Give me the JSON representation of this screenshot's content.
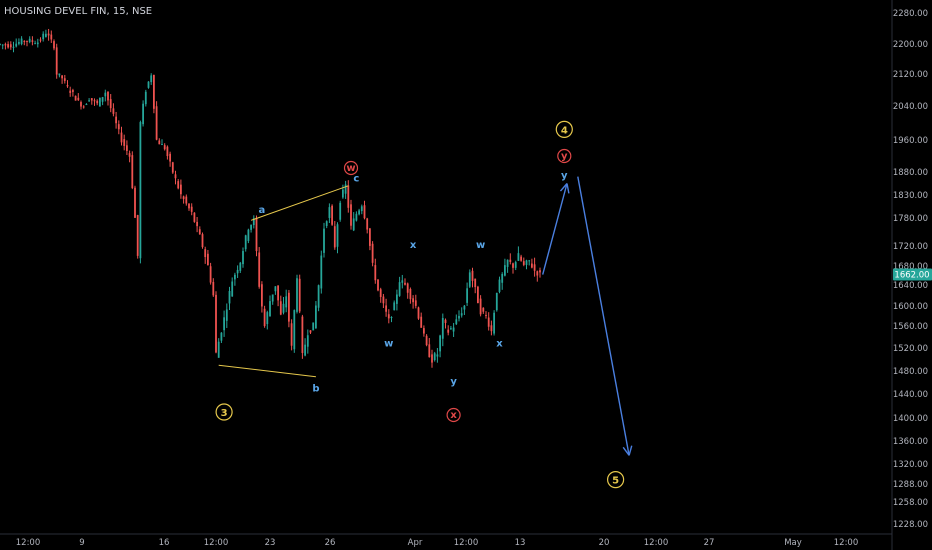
{
  "chart_data": {
    "type": "candlestick",
    "title": "HOUSING DEVEL FIN, 15, NSE",
    "last_price_label": "1662.00",
    "colors": {
      "background": "#000000",
      "up": "#26a69a",
      "down": "#ef5350",
      "trendline": "#e6c84c",
      "arrow": "#4a7fe0",
      "wave_major": "#e6c84c",
      "wave_red": "#e04848",
      "wave_blue": "#5aa6e8",
      "price_badge": "#26a69a"
    },
    "y_axis": {
      "ticks": [
        "2280.00",
        "2200.00",
        "2120.00",
        "2040.00",
        "1960.00",
        "1880.00",
        "1830.00",
        "1780.00",
        "1720.00",
        "1680.00",
        "1640.00",
        "1600.00",
        "1560.00",
        "1520.00",
        "1480.00",
        "1440.00",
        "1400.00",
        "1360.00",
        "1320.00",
        "1288.00",
        "1258.00",
        "1228.00"
      ]
    },
    "x_axis": {
      "ticks": [
        "12:00",
        "9",
        "16",
        "12:00",
        "23",
        "26",
        "Apr",
        "12:00",
        "13",
        "20",
        "12:00",
        "27",
        "May",
        "12:00"
      ]
    },
    "price_path": [
      {
        "x": 0,
        "y": 2200
      },
      {
        "x": 5,
        "y": 2196
      },
      {
        "x": 10,
        "y": 2210
      },
      {
        "x": 15,
        "y": 2205
      },
      {
        "x": 18,
        "y": 2230
      },
      {
        "x": 21,
        "y": 2195
      },
      {
        "x": 22,
        "y": 2120
      },
      {
        "x": 24,
        "y": 2110
      },
      {
        "x": 26,
        "y": 2085
      },
      {
        "x": 28,
        "y": 2070
      },
      {
        "x": 30,
        "y": 2050
      },
      {
        "x": 32,
        "y": 2040
      },
      {
        "x": 34,
        "y": 2060
      },
      {
        "x": 37,
        "y": 2045
      },
      {
        "x": 40,
        "y": 2075
      },
      {
        "x": 43,
        "y": 2015
      },
      {
        "x": 46,
        "y": 1960
      },
      {
        "x": 49,
        "y": 1920
      },
      {
        "x": 51,
        "y": 1780
      },
      {
        "x": 52,
        "y": 1700
      },
      {
        "x": 53,
        "y": 2000
      },
      {
        "x": 55,
        "y": 2080
      },
      {
        "x": 57,
        "y": 2120
      },
      {
        "x": 59,
        "y": 1960
      },
      {
        "x": 62,
        "y": 1940
      },
      {
        "x": 65,
        "y": 1880
      },
      {
        "x": 68,
        "y": 1830
      },
      {
        "x": 72,
        "y": 1790
      },
      {
        "x": 75,
        "y": 1740
      },
      {
        "x": 78,
        "y": 1680
      },
      {
        "x": 80,
        "y": 1620
      },
      {
        "x": 81,
        "y": 1510
      },
      {
        "x": 84,
        "y": 1575
      },
      {
        "x": 87,
        "y": 1650
      },
      {
        "x": 90,
        "y": 1690
      },
      {
        "x": 93,
        "y": 1760
      },
      {
        "x": 95,
        "y": 1775
      },
      {
        "x": 97,
        "y": 1640
      },
      {
        "x": 99,
        "y": 1560
      },
      {
        "x": 101,
        "y": 1610
      },
      {
        "x": 103,
        "y": 1640
      },
      {
        "x": 105,
        "y": 1580
      },
      {
        "x": 107,
        "y": 1620
      },
      {
        "x": 109,
        "y": 1520
      },
      {
        "x": 111,
        "y": 1660
      },
      {
        "x": 113,
        "y": 1505
      },
      {
        "x": 115,
        "y": 1550
      },
      {
        "x": 117,
        "y": 1560
      },
      {
        "x": 119,
        "y": 1640
      },
      {
        "x": 121,
        "y": 1760
      },
      {
        "x": 123,
        "y": 1800
      },
      {
        "x": 125,
        "y": 1720
      },
      {
        "x": 127,
        "y": 1820
      },
      {
        "x": 129,
        "y": 1850
      },
      {
        "x": 131,
        "y": 1760
      },
      {
        "x": 133,
        "y": 1790
      },
      {
        "x": 135,
        "y": 1810
      },
      {
        "x": 137,
        "y": 1760
      },
      {
        "x": 139,
        "y": 1680
      },
      {
        "x": 141,
        "y": 1630
      },
      {
        "x": 143,
        "y": 1600
      },
      {
        "x": 145,
        "y": 1570
      },
      {
        "x": 147,
        "y": 1600
      },
      {
        "x": 149,
        "y": 1650
      },
      {
        "x": 151,
        "y": 1640
      },
      {
        "x": 153,
        "y": 1620
      },
      {
        "x": 155,
        "y": 1600
      },
      {
        "x": 157,
        "y": 1560
      },
      {
        "x": 159,
        "y": 1520
      },
      {
        "x": 161,
        "y": 1500
      },
      {
        "x": 163,
        "y": 1510
      },
      {
        "x": 165,
        "y": 1570
      },
      {
        "x": 167,
        "y": 1550
      },
      {
        "x": 169,
        "y": 1560
      },
      {
        "x": 171,
        "y": 1580
      },
      {
        "x": 173,
        "y": 1600
      },
      {
        "x": 175,
        "y": 1670
      },
      {
        "x": 177,
        "y": 1630
      },
      {
        "x": 179,
        "y": 1590
      },
      {
        "x": 181,
        "y": 1580
      },
      {
        "x": 183,
        "y": 1550
      },
      {
        "x": 185,
        "y": 1630
      },
      {
        "x": 187,
        "y": 1660
      },
      {
        "x": 189,
        "y": 1690
      },
      {
        "x": 191,
        "y": 1680
      },
      {
        "x": 193,
        "y": 1700
      },
      {
        "x": 195,
        "y": 1680
      },
      {
        "x": 197,
        "y": 1690
      },
      {
        "x": 199,
        "y": 1670
      },
      {
        "x": 201,
        "y": 1662
      }
    ],
    "trendlines": [
      {
        "from": {
          "x": 93,
          "y": 1775
        },
        "to": {
          "x": 129,
          "y": 1850
        }
      },
      {
        "from": {
          "x": 81,
          "y": 1490
        },
        "to": {
          "x": 117,
          "y": 1470
        }
      }
    ],
    "forecast_arrows": [
      {
        "from": {
          "x": 201,
          "y": 1662
        },
        "to": {
          "x": 210,
          "y": 1855
        }
      },
      {
        "from": {
          "x": 214,
          "y": 1870
        },
        "to": {
          "x": 233,
          "y": 1335
        }
      }
    ],
    "wave_labels": [
      {
        "text": "3",
        "style": "major-circle",
        "x": 83,
        "y": 1410
      },
      {
        "text": "a",
        "style": "blue",
        "x": 97,
        "y": 1797
      },
      {
        "text": "b",
        "style": "blue",
        "x": 117,
        "y": 1450
      },
      {
        "text": "c",
        "style": "blue",
        "x": 132,
        "y": 1866
      },
      {
        "text": "w",
        "style": "red-circle",
        "x": 130,
        "y": 1890
      },
      {
        "text": "w",
        "style": "blue",
        "x": 144,
        "y": 1528
      },
      {
        "text": "x",
        "style": "blue",
        "x": 153,
        "y": 1722
      },
      {
        "text": "y",
        "style": "blue",
        "x": 168,
        "y": 1462
      },
      {
        "text": "x",
        "style": "red-circle",
        "x": 168,
        "y": 1405
      },
      {
        "text": "w",
        "style": "blue",
        "x": 178,
        "y": 1722
      },
      {
        "text": "x",
        "style": "blue",
        "x": 185,
        "y": 1528
      },
      {
        "text": "4",
        "style": "major-circle",
        "x": 209,
        "y": 1985
      },
      {
        "text": "y",
        "style": "red-circle",
        "x": 209,
        "y": 1920
      },
      {
        "text": "y",
        "style": "blue",
        "x": 209,
        "y": 1872
      },
      {
        "text": "5",
        "style": "major-circle",
        "x": 228,
        "y": 1295
      }
    ]
  }
}
